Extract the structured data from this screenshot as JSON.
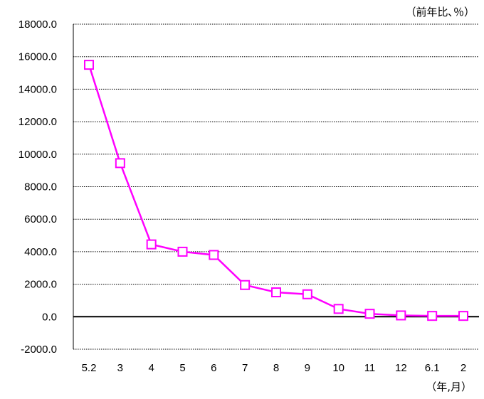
{
  "chart_data": {
    "type": "line",
    "categories": [
      "5.2",
      "3",
      "4",
      "5",
      "6",
      "7",
      "8",
      "9",
      "10",
      "11",
      "12",
      "6.1",
      "2"
    ],
    "series": [
      {
        "values": [
          15500,
          9450,
          4450,
          4000,
          3800,
          1950,
          1500,
          1380,
          480,
          180,
          80,
          50,
          50
        ]
      }
    ],
    "ylim": [
      -2000,
      18000
    ],
    "yticks": [
      "-2000.0",
      "0.0",
      "2000.0",
      "4000.0",
      "6000.0",
      "8000.0",
      "10000.0",
      "12000.0",
      "14000.0",
      "16000.0",
      "18000.0"
    ],
    "y_unit_label": "（前年比､％）",
    "x_unit_label": "（年,月）",
    "grid": true,
    "colors": {
      "series": "#ff00ff",
      "zero_line": "#000000",
      "grid": "#000000"
    }
  }
}
